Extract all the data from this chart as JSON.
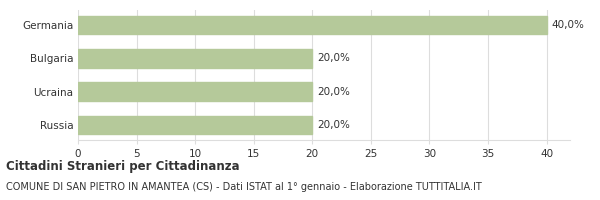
{
  "categories": [
    "Russia",
    "Ucraina",
    "Bulgaria",
    "Germania"
  ],
  "values": [
    20.0,
    20.0,
    20.0,
    40.0
  ],
  "labels": [
    "20,0%",
    "20,0%",
    "20,0%",
    "40,0%"
  ],
  "bar_color": "#b5c99a",
  "bar_edge_color": "#b5c99a",
  "xlim": [
    0,
    42
  ],
  "xticks": [
    0,
    5,
    10,
    15,
    20,
    25,
    30,
    35,
    40
  ],
  "title_bold": "Cittadini Stranieri per Cittadinanza",
  "subtitle": "COMUNE DI SAN PIETRO IN AMANTEA (CS) - Dati ISTAT al 1° gennaio - Elaborazione TUTTITALIA.IT",
  "title_fontsize": 8.5,
  "subtitle_fontsize": 7.0,
  "label_fontsize": 7.5,
  "tick_fontsize": 7.5,
  "ytick_fontsize": 7.5,
  "background_color": "#ffffff",
  "grid_color": "#dddddd",
  "text_color": "#333333"
}
